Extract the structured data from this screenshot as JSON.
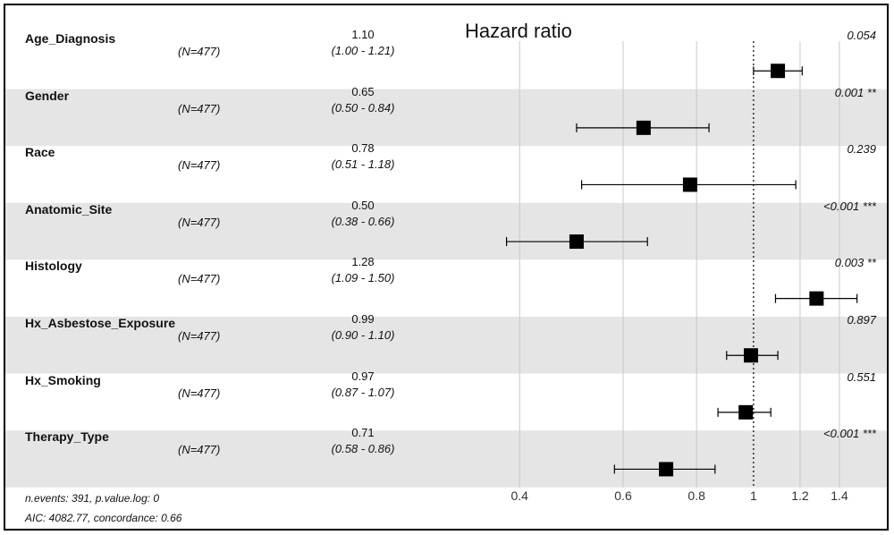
{
  "chart_data": {
    "type": "forest",
    "title": "Hazard ratio",
    "x_scale": "log",
    "xlim": [
      0.345,
      1.55
    ],
    "x_ticks": [
      0.4,
      0.6,
      0.8,
      1,
      1.2,
      1.4
    ],
    "reference_line": 1,
    "grid": true,
    "rows": [
      {
        "variable": "Age_Diagnosis",
        "n": "(N=477)",
        "hr_text": "1.10",
        "ci_text": "(1.00 - 1.21)",
        "hr": 1.1,
        "lower": 1.0,
        "upper": 1.21,
        "p_text": "0.054"
      },
      {
        "variable": "Gender",
        "n": "(N=477)",
        "hr_text": "0.65",
        "ci_text": "(0.50 - 0.84)",
        "hr": 0.65,
        "lower": 0.5,
        "upper": 0.84,
        "p_text": "0.001 **"
      },
      {
        "variable": "Race",
        "n": "(N=477)",
        "hr_text": "0.78",
        "ci_text": "(0.51 - 1.18)",
        "hr": 0.78,
        "lower": 0.51,
        "upper": 1.18,
        "p_text": "0.239"
      },
      {
        "variable": "Anatomic_Site",
        "n": "(N=477)",
        "hr_text": "0.50",
        "ci_text": "(0.38 - 0.66)",
        "hr": 0.5,
        "lower": 0.38,
        "upper": 0.66,
        "p_text": "<0.001 ***"
      },
      {
        "variable": "Histology",
        "n": "(N=477)",
        "hr_text": "1.28",
        "ci_text": "(1.09 - 1.50)",
        "hr": 1.28,
        "lower": 1.09,
        "upper": 1.5,
        "p_text": "0.003 **"
      },
      {
        "variable": "Hx_Asbestose_Exposure",
        "n": "(N=477)",
        "hr_text": "0.99",
        "ci_text": "(0.90 - 1.10)",
        "hr": 0.99,
        "lower": 0.9,
        "upper": 1.1,
        "p_text": "0.897"
      },
      {
        "variable": "Hx_Smoking",
        "n": "(N=477)",
        "hr_text": "0.97",
        "ci_text": "(0.87 - 1.07)",
        "hr": 0.97,
        "lower": 0.87,
        "upper": 1.07,
        "p_text": "0.551"
      },
      {
        "variable": "Therapy_Type",
        "n": "(N=477)",
        "hr_text": "0.71",
        "ci_text": "(0.58 - 0.86)",
        "hr": 0.71,
        "lower": 0.58,
        "upper": 0.86,
        "p_text": "<0.001 ***"
      }
    ],
    "footer": [
      "n.events: 391, p.value.log: 0",
      "AIC: 4082.77, concordance: 0.66"
    ]
  },
  "colors": {
    "stripe": "#e5e5e5",
    "grid": "#c8c8c8",
    "marker": "#000000"
  }
}
